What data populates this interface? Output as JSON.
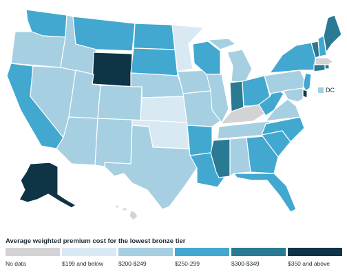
{
  "legend": {
    "title": "Average weighted premium cost for the lowest bronze tier",
    "items": [
      {
        "key": "nodata",
        "label": "No data",
        "color": "#d3d3d5"
      },
      {
        "key": "t1",
        "label": "$199 and below",
        "color": "#d8e9f4"
      },
      {
        "key": "t2",
        "label": "$200-$249",
        "color": "#a6cfe2"
      },
      {
        "key": "t3",
        "label": "$250-299",
        "color": "#42a8d0"
      },
      {
        "key": "t4",
        "label": "$300-$349",
        "color": "#2b7a93"
      },
      {
        "key": "t5",
        "label": "$350 and above",
        "color": "#0e3446"
      }
    ]
  },
  "dc": {
    "label": "DC",
    "tier": "t2"
  },
  "states": {
    "WA": "t3",
    "OR": "t2",
    "CA": "t3",
    "NV": "t2",
    "ID": "t2",
    "MT": "t3",
    "WY": "t5",
    "UT": "t2",
    "AZ": "t2",
    "CO": "t2",
    "NM": "t2",
    "ND": "t3",
    "SD": "t3",
    "NE": "t2",
    "KS": "t1",
    "OK": "t1",
    "TX": "t2",
    "MN": "t1",
    "IA": "t2",
    "MO": "t2",
    "AR": "t3",
    "LA": "t3",
    "WI": "t3",
    "IL": "t2",
    "MI": "t2",
    "IN": "t4",
    "OH": "t3",
    "KY": "nodata",
    "TN": "t2",
    "MS": "t4",
    "AL": "t2",
    "GA": "t3",
    "FL": "t3",
    "SC": "t3",
    "NC": "t3",
    "VA": "t2",
    "WV": "t3",
    "PA": "t2",
    "NY": "t3",
    "VT": "t4",
    "NH": "t3",
    "ME": "t4",
    "MA": "nodata",
    "RI": "t4",
    "CT": "t4",
    "NJ": "t3",
    "DE": "t5",
    "MD": "t2",
    "AK": "t5",
    "HI": "nodata"
  }
}
